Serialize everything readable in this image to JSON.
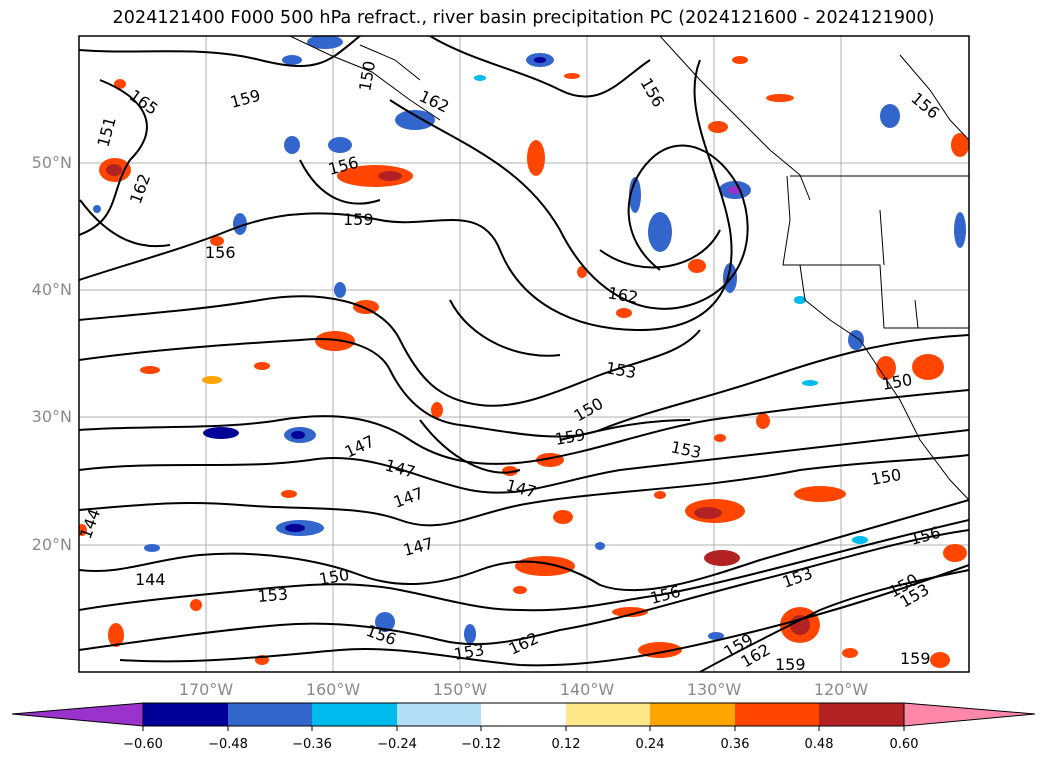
{
  "title": "2024121400 F000 500 hPa refract., river basin precipitation PC (2024121600 - 2024121900)",
  "lat_labels": [
    "50°N",
    "40°N",
    "30°N",
    "20°N"
  ],
  "lon_labels": [
    "170°W",
    "160°W",
    "150°W",
    "140°W",
    "130°W",
    "120°W"
  ],
  "contour_labels": [
    "165",
    "159",
    "162",
    "156",
    "162",
    "159",
    "156",
    "153",
    "162",
    "153",
    "150",
    "159",
    "153",
    "147",
    "147",
    "147",
    "147",
    "150",
    "150",
    "147",
    "144",
    "144",
    "150",
    "153",
    "156",
    "153",
    "156",
    "150",
    "156",
    "153",
    "156",
    "162",
    "159",
    "162",
    "159",
    "159",
    "150",
    "156",
    "151"
  ],
  "colorbar": {
    "ticks": [
      "−0.60",
      "−0.48",
      "−0.36",
      "−0.24",
      "−0.12",
      "0.12",
      "0.24",
      "0.36",
      "0.48",
      "0.60"
    ],
    "colors": [
      "#9933cc",
      "#000099",
      "#3366cc",
      "#00bbee",
      "#b3e0f7",
      "#ffffff",
      "#ffe88a",
      "#ffa500",
      "#ff4500",
      "#b22222",
      "#ff88aa"
    ]
  },
  "colors": {
    "contour": "#000000",
    "grid": "#b0b0b0",
    "border": "#000000"
  }
}
